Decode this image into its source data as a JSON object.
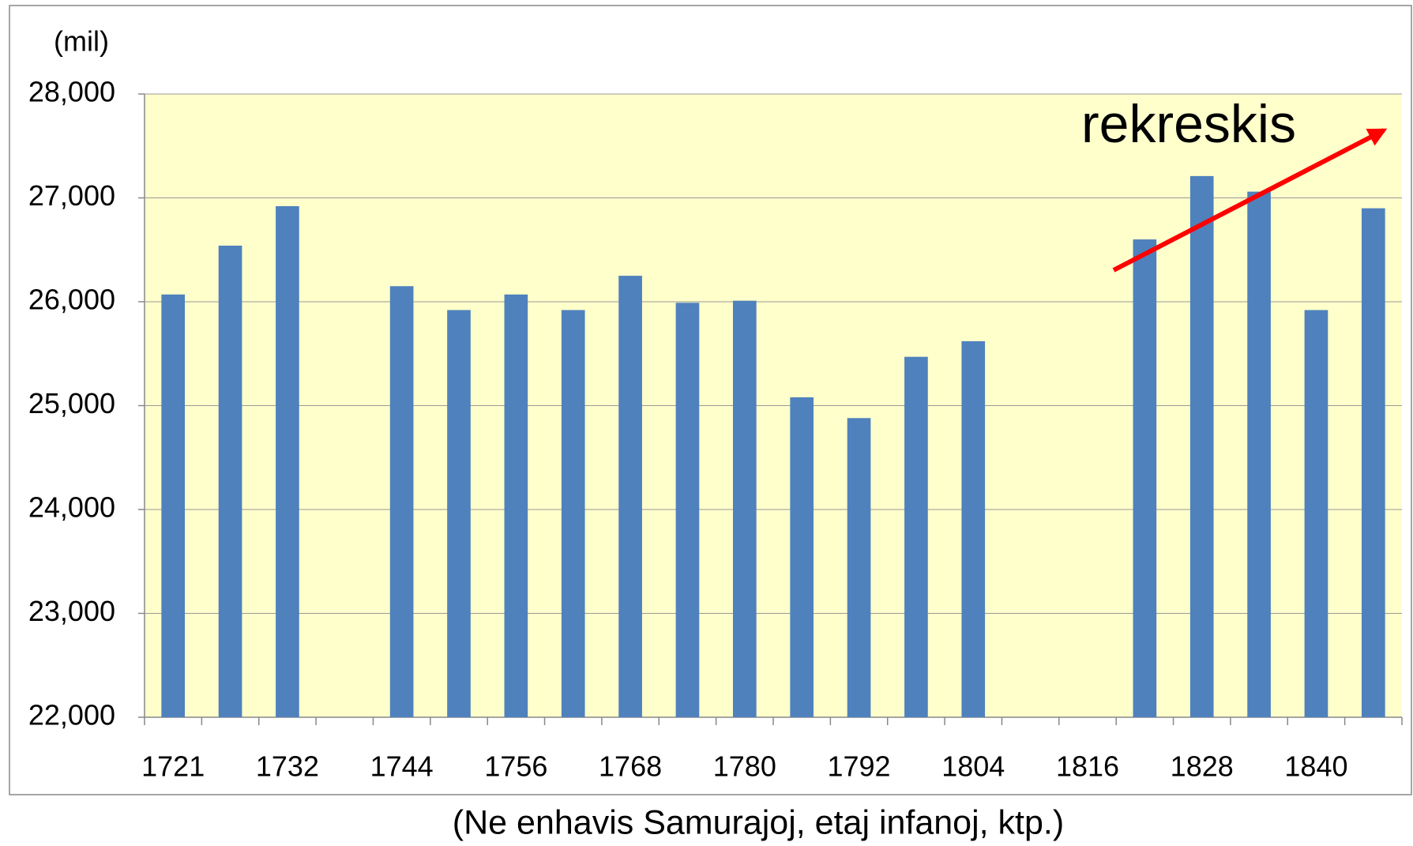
{
  "chart_data": {
    "type": "bar",
    "y_unit": "(mil)",
    "x_label": "(Ne enhavis Samurajoj, etaj infanoj, ktp.)",
    "annotation": "rekreskis",
    "categories": [
      "1721",
      null,
      "1732",
      null,
      "1744",
      null,
      "1756",
      null,
      "1768",
      null,
      "1780",
      null,
      "1792",
      null,
      "1804",
      null,
      "1816",
      null,
      "1828",
      null,
      "1840",
      null
    ],
    "values": [
      26070,
      26540,
      26920,
      null,
      26150,
      25920,
      26070,
      25920,
      26250,
      25990,
      26010,
      25080,
      24880,
      25470,
      25620,
      null,
      null,
      26600,
      27210,
      27060,
      25920,
      26900
    ],
    "color": "#4f81bd",
    "ylim": [
      22000,
      28000
    ],
    "yticks": [
      {
        "value": 22000,
        "label": "22,000"
      },
      {
        "value": 23000,
        "label": "23,000"
      },
      {
        "value": 24000,
        "label": "24,000"
      },
      {
        "value": 25000,
        "label": "25,000"
      },
      {
        "value": 26000,
        "label": "26,000"
      },
      {
        "value": 27000,
        "label": "27,000"
      },
      {
        "value": 28000,
        "label": "28,000"
      }
    ],
    "grid": true
  }
}
